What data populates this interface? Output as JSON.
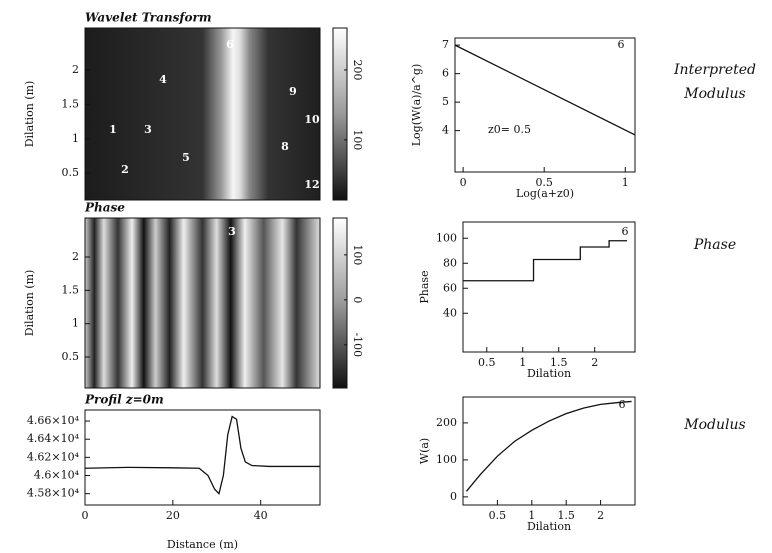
{
  "chart_data": [
    {
      "type": "heatmap",
      "title": "Wavelet Transform",
      "ylabel": "Dilation (m)",
      "ylim": [
        0.11,
        2.61
      ],
      "yticks": [
        0.5,
        1,
        1.5,
        2
      ],
      "clim": [
        14,
        260
      ],
      "cticks": [
        100,
        200
      ],
      "annotations": [
        "6",
        "4",
        "9",
        "1",
        "3",
        "10",
        "8",
        "5",
        "2",
        "12"
      ]
    },
    {
      "type": "heatmap",
      "title": "Phase",
      "ylabel": "Dilation (m)",
      "ylim": [
        0.035,
        2.585
      ],
      "yticks": [
        0.5,
        1,
        1.5,
        2
      ],
      "clim": [
        -196,
        182
      ],
      "cticks": [
        -100,
        0,
        100
      ],
      "annotations": [
        "3"
      ]
    },
    {
      "type": "line",
      "title": "Profil z=0m",
      "xlabel": "Distance (m)",
      "xlim": [
        0,
        53.5
      ],
      "xticks": [
        0,
        20,
        40
      ],
      "ylim": [
        45675,
        46722
      ],
      "yticks": [
        {
          "value": 45800,
          "label": "4.58×10⁴"
        },
        {
          "value": 46000,
          "label": "4.6×10⁴"
        },
        {
          "value": 46200,
          "label": "4.62×10⁴"
        },
        {
          "value": 46400,
          "label": "4.64×10⁴"
        },
        {
          "value": 46600,
          "label": "4.66×10⁴"
        }
      ],
      "x": [
        0,
        10,
        20,
        26,
        28,
        29.5,
        30.5,
        31.5,
        32.5,
        33.5,
        34.5,
        35.5,
        36.5,
        38,
        42,
        53.5
      ],
      "values": [
        46080,
        46090,
        46085,
        46080,
        46000,
        45850,
        45800,
        46000,
        46450,
        46650,
        46620,
        46300,
        46150,
        46110,
        46100,
        46100
      ]
    },
    {
      "type": "line",
      "side_label": "Interpreted Modulus",
      "xlabel": "Log(a+z0)",
      "ylabel": "Log(W(a)/a^g)",
      "xlim": [
        -0.05,
        1.06
      ],
      "xticks": [
        0,
        0.5,
        1
      ],
      "ylim": [
        2.55,
        7.25
      ],
      "yticks": [
        4,
        5,
        6,
        7
      ],
      "x": [
        -0.05,
        1.06
      ],
      "values": [
        7.0,
        3.85
      ],
      "annotations": [
        "6",
        "z0= 0.5"
      ]
    },
    {
      "type": "line",
      "side_label": "Phase",
      "xlabel": "Dilation",
      "ylabel": "Phase",
      "xlim": [
        0.17,
        2.56
      ],
      "xticks": [
        0.5,
        1,
        1.5,
        2
      ],
      "ylim": [
        9,
        113
      ],
      "yticks": [
        40,
        60,
        80,
        100
      ],
      "x": [
        0.17,
        1.15,
        1.15,
        1.8,
        1.8,
        2.2,
        2.2,
        2.45
      ],
      "values": [
        66,
        66,
        83,
        83,
        93,
        93,
        98,
        98
      ],
      "annotations": [
        "6"
      ]
    },
    {
      "type": "line",
      "side_label": "Modulus",
      "xlabel": "Dilation",
      "ylabel": "W(a)",
      "xlim": [
        0,
        2.5
      ],
      "xticks": [
        0.5,
        1,
        1.5,
        2
      ],
      "ylim": [
        -22,
        270
      ],
      "yticks": [
        0,
        100,
        200
      ],
      "x": [
        0.05,
        0.25,
        0.5,
        0.75,
        1,
        1.25,
        1.5,
        1.75,
        2,
        2.25,
        2.45
      ],
      "values": [
        15,
        60,
        110,
        150,
        180,
        205,
        225,
        240,
        250,
        255,
        258
      ],
      "annotations": [
        "6"
      ]
    }
  ]
}
